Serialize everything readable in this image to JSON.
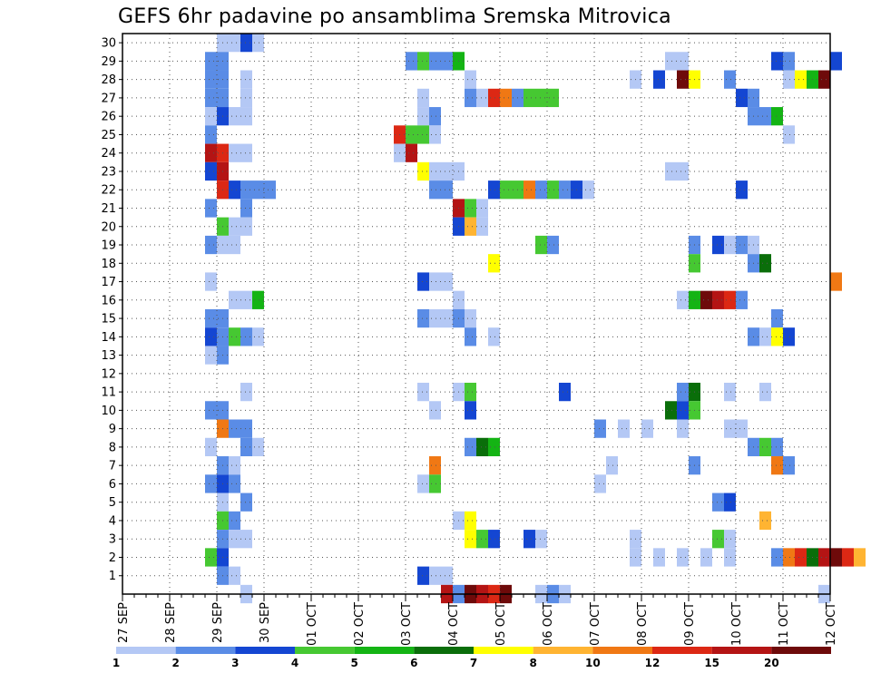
{
  "chart_data": {
    "type": "heatmap",
    "title": "GEFS 6hr padavine po ansamblima Sremska Mitrovica",
    "xlabel": "",
    "ylabel": "",
    "x_start": "27 SEP 00Z",
    "x_tick_labels": [
      "27 SEP",
      "28 SEP",
      "29 SEP",
      "30 SEP",
      "01 OCT",
      "02 OCT",
      "03 OCT",
      "04 OCT",
      "05 OCT",
      "06 OCT",
      "07 OCT",
      "08 OCT",
      "09 OCT",
      "10 OCT",
      "11 OCT",
      "12 OCT"
    ],
    "steps_per_day": 4,
    "y_tick_labels": [
      "1",
      "2",
      "3",
      "4",
      "5",
      "6",
      "7",
      "8",
      "9",
      "10",
      "11",
      "12",
      "13",
      "14",
      "15",
      "16",
      "17",
      "18",
      "19",
      "20",
      "21",
      "22",
      "23",
      "24",
      "25",
      "26",
      "27",
      "28",
      "29",
      "30"
    ],
    "y_range": [
      0,
      30
    ],
    "grid": true,
    "colorbar": {
      "labels": [
        "1",
        "2",
        "3",
        "4",
        "5",
        "6",
        "7",
        "8",
        "10",
        "12",
        "15",
        "20"
      ],
      "colors": [
        "#b4c8f5",
        "#5a8ce6",
        "#1446d2",
        "#46c832",
        "#14b414",
        "#0a6e0a",
        "#ffff00",
        "#ffb432",
        "#f07814",
        "#dc2814",
        "#b41414",
        "#6e0a0a"
      ]
    },
    "cells_note": "each cell: [day_offset_from_27SEP, member_row, color_class 1..12]",
    "cells": [
      [
        2.0,
        30,
        1
      ],
      [
        2.25,
        30,
        1
      ],
      [
        2.5,
        30,
        3
      ],
      [
        2.75,
        30,
        1
      ],
      [
        1.75,
        29,
        2
      ],
      [
        2.0,
        29,
        2
      ],
      [
        6.0,
        29,
        2
      ],
      [
        6.25,
        29,
        4
      ],
      [
        6.5,
        29,
        2
      ],
      [
        6.75,
        29,
        2
      ],
      [
        7.0,
        29,
        5
      ],
      [
        11.5,
        29,
        1
      ],
      [
        11.75,
        29,
        1
      ],
      [
        13.75,
        29,
        3
      ],
      [
        14.0,
        29,
        2
      ],
      [
        15.0,
        29,
        3
      ],
      [
        1.75,
        28,
        2
      ],
      [
        2.0,
        28,
        2
      ],
      [
        2.5,
        28,
        1
      ],
      [
        7.25,
        28,
        1
      ],
      [
        10.75,
        28,
        1
      ],
      [
        11.25,
        28,
        3
      ],
      [
        11.75,
        28,
        12
      ],
      [
        12.0,
        28,
        7
      ],
      [
        12.75,
        28,
        2
      ],
      [
        14.0,
        28,
        1
      ],
      [
        14.25,
        28,
        7
      ],
      [
        14.5,
        28,
        5
      ],
      [
        14.75,
        28,
        12
      ],
      [
        1.75,
        27,
        2
      ],
      [
        2.0,
        27,
        2
      ],
      [
        2.5,
        27,
        1
      ],
      [
        6.25,
        27,
        1
      ],
      [
        7.25,
        27,
        2
      ],
      [
        7.5,
        27,
        1
      ],
      [
        7.75,
        27,
        10
      ],
      [
        8.0,
        27,
        9
      ],
      [
        8.25,
        27,
        2
      ],
      [
        8.5,
        27,
        4
      ],
      [
        8.75,
        27,
        4
      ],
      [
        9.0,
        27,
        4
      ],
      [
        13.0,
        27,
        3
      ],
      [
        13.25,
        27,
        2
      ],
      [
        1.75,
        26,
        1
      ],
      [
        2.0,
        26,
        3
      ],
      [
        2.25,
        26,
        1
      ],
      [
        2.5,
        26,
        1
      ],
      [
        6.25,
        26,
        1
      ],
      [
        6.5,
        26,
        2
      ],
      [
        13.25,
        26,
        2
      ],
      [
        13.5,
        26,
        2
      ],
      [
        13.75,
        26,
        5
      ],
      [
        1.75,
        25,
        2
      ],
      [
        5.75,
        25,
        10
      ],
      [
        6.0,
        25,
        4
      ],
      [
        6.25,
        25,
        4
      ],
      [
        6.5,
        25,
        1
      ],
      [
        14.0,
        25,
        1
      ],
      [
        1.75,
        24,
        11
      ],
      [
        2.0,
        24,
        10
      ],
      [
        2.25,
        24,
        1
      ],
      [
        2.5,
        24,
        1
      ],
      [
        5.75,
        24,
        1
      ],
      [
        6.0,
        24,
        11
      ],
      [
        1.75,
        23,
        3
      ],
      [
        2.0,
        23,
        11
      ],
      [
        6.25,
        23,
        7
      ],
      [
        6.5,
        23,
        1
      ],
      [
        6.75,
        23,
        1
      ],
      [
        7.0,
        23,
        1
      ],
      [
        11.5,
        23,
        1
      ],
      [
        11.75,
        23,
        1
      ],
      [
        2.0,
        22,
        10
      ],
      [
        2.25,
        22,
        3
      ],
      [
        2.5,
        22,
        2
      ],
      [
        2.75,
        22,
        2
      ],
      [
        3.0,
        22,
        2
      ],
      [
        6.5,
        22,
        2
      ],
      [
        6.75,
        22,
        2
      ],
      [
        7.75,
        22,
        3
      ],
      [
        8.0,
        22,
        4
      ],
      [
        8.25,
        22,
        4
      ],
      [
        8.5,
        22,
        9
      ],
      [
        8.75,
        22,
        2
      ],
      [
        9.0,
        22,
        4
      ],
      [
        9.25,
        22,
        2
      ],
      [
        9.5,
        22,
        3
      ],
      [
        9.75,
        22,
        1
      ],
      [
        13.0,
        22,
        3
      ],
      [
        1.75,
        21,
        2
      ],
      [
        2.5,
        21,
        2
      ],
      [
        7.0,
        21,
        11
      ],
      [
        7.25,
        21,
        4
      ],
      [
        7.5,
        21,
        1
      ],
      [
        2.0,
        20,
        4
      ],
      [
        2.25,
        20,
        1
      ],
      [
        2.5,
        20,
        1
      ],
      [
        7.0,
        20,
        3
      ],
      [
        7.25,
        20,
        8
      ],
      [
        7.5,
        20,
        1
      ],
      [
        1.75,
        19,
        2
      ],
      [
        2.0,
        19,
        1
      ],
      [
        2.25,
        19,
        1
      ],
      [
        8.75,
        19,
        4
      ],
      [
        9.0,
        19,
        2
      ],
      [
        12.0,
        19,
        2
      ],
      [
        12.5,
        19,
        3
      ],
      [
        12.75,
        19,
        1
      ],
      [
        13.0,
        19,
        2
      ],
      [
        13.25,
        19,
        1
      ],
      [
        7.75,
        18,
        7
      ],
      [
        12.0,
        18,
        4
      ],
      [
        13.25,
        18,
        2
      ],
      [
        13.5,
        18,
        6
      ],
      [
        1.75,
        17,
        1
      ],
      [
        6.25,
        17,
        3
      ],
      [
        6.5,
        17,
        1
      ],
      [
        6.75,
        17,
        1
      ],
      [
        15.0,
        17,
        9
      ],
      [
        2.25,
        16,
        1
      ],
      [
        2.5,
        16,
        1
      ],
      [
        2.75,
        16,
        5
      ],
      [
        7.0,
        16,
        1
      ],
      [
        11.75,
        16,
        1
      ],
      [
        12.0,
        16,
        5
      ],
      [
        12.25,
        16,
        12
      ],
      [
        12.5,
        16,
        11
      ],
      [
        12.75,
        16,
        10
      ],
      [
        13.0,
        16,
        2
      ],
      [
        1.75,
        15,
        2
      ],
      [
        2.0,
        15,
        2
      ],
      [
        6.25,
        15,
        2
      ],
      [
        6.5,
        15,
        1
      ],
      [
        6.75,
        15,
        1
      ],
      [
        7.0,
        15,
        2
      ],
      [
        7.25,
        15,
        1
      ],
      [
        13.75,
        15,
        2
      ],
      [
        1.75,
        14,
        3
      ],
      [
        2.0,
        14,
        2
      ],
      [
        2.25,
        14,
        4
      ],
      [
        2.5,
        14,
        2
      ],
      [
        2.75,
        14,
        1
      ],
      [
        7.25,
        14,
        2
      ],
      [
        7.75,
        14,
        1
      ],
      [
        13.25,
        14,
        2
      ],
      [
        13.5,
        14,
        1
      ],
      [
        13.75,
        14,
        7
      ],
      [
        14.0,
        14,
        3
      ],
      [
        1.75,
        13,
        1
      ],
      [
        2.0,
        13,
        2
      ],
      [
        2.5,
        11,
        1
      ],
      [
        6.25,
        11,
        1
      ],
      [
        7.0,
        11,
        1
      ],
      [
        7.25,
        11,
        4
      ],
      [
        9.25,
        11,
        3
      ],
      [
        11.75,
        11,
        2
      ],
      [
        12.0,
        11,
        6
      ],
      [
        12.75,
        11,
        1
      ],
      [
        13.5,
        11,
        1
      ],
      [
        1.75,
        10,
        2
      ],
      [
        2.0,
        10,
        2
      ],
      [
        6.5,
        10,
        1
      ],
      [
        7.25,
        10,
        3
      ],
      [
        11.5,
        10,
        6
      ],
      [
        11.75,
        10,
        3
      ],
      [
        12.0,
        10,
        4
      ],
      [
        2.0,
        9,
        9
      ],
      [
        2.25,
        9,
        2
      ],
      [
        2.5,
        9,
        2
      ],
      [
        10.0,
        9,
        2
      ],
      [
        10.5,
        9,
        1
      ],
      [
        11.0,
        9,
        1
      ],
      [
        11.75,
        9,
        1
      ],
      [
        12.75,
        9,
        1
      ],
      [
        13.0,
        9,
        1
      ],
      [
        1.75,
        8,
        1
      ],
      [
        2.5,
        8,
        2
      ],
      [
        2.75,
        8,
        1
      ],
      [
        7.25,
        8,
        2
      ],
      [
        7.5,
        8,
        6
      ],
      [
        7.75,
        8,
        5
      ],
      [
        13.25,
        8,
        2
      ],
      [
        13.5,
        8,
        4
      ],
      [
        13.75,
        8,
        2
      ],
      [
        2.0,
        7,
        2
      ],
      [
        2.25,
        7,
        1
      ],
      [
        6.5,
        7,
        9
      ],
      [
        10.25,
        7,
        1
      ],
      [
        12.0,
        7,
        2
      ],
      [
        13.75,
        7,
        9
      ],
      [
        14.0,
        7,
        2
      ],
      [
        1.75,
        6,
        2
      ],
      [
        2.0,
        6,
        3
      ],
      [
        2.25,
        6,
        2
      ],
      [
        6.25,
        6,
        1
      ],
      [
        6.5,
        6,
        4
      ],
      [
        10.0,
        6,
        1
      ],
      [
        2.0,
        5,
        1
      ],
      [
        2.5,
        5,
        2
      ],
      [
        12.5,
        5,
        2
      ],
      [
        12.75,
        5,
        3
      ],
      [
        2.0,
        4,
        4
      ],
      [
        2.25,
        4,
        2
      ],
      [
        7.0,
        4,
        1
      ],
      [
        7.25,
        4,
        7
      ],
      [
        13.5,
        4,
        8
      ],
      [
        2.0,
        3,
        2
      ],
      [
        2.25,
        3,
        1
      ],
      [
        2.5,
        3,
        1
      ],
      [
        7.25,
        3,
        7
      ],
      [
        7.5,
        3,
        4
      ],
      [
        7.75,
        3,
        3
      ],
      [
        8.5,
        3,
        3
      ],
      [
        8.75,
        3,
        1
      ],
      [
        10.75,
        3,
        1
      ],
      [
        12.5,
        3,
        4
      ],
      [
        12.75,
        3,
        1
      ],
      [
        1.75,
        2,
        4
      ],
      [
        2.0,
        2,
        3
      ],
      [
        10.75,
        2,
        1
      ],
      [
        11.25,
        2,
        1
      ],
      [
        11.75,
        2,
        1
      ],
      [
        12.25,
        2,
        1
      ],
      [
        12.75,
        2,
        1
      ],
      [
        13.75,
        2,
        2
      ],
      [
        14.0,
        2,
        9
      ],
      [
        14.25,
        2,
        10
      ],
      [
        14.5,
        2,
        6
      ],
      [
        14.75,
        2,
        11
      ],
      [
        15.0,
        2,
        12
      ],
      [
        15.25,
        2,
        10
      ],
      [
        15.5,
        2,
        8
      ],
      [
        2.0,
        1,
        2
      ],
      [
        2.25,
        1,
        1
      ],
      [
        6.25,
        1,
        3
      ],
      [
        6.5,
        1,
        1
      ],
      [
        6.75,
        1,
        1
      ],
      [
        2.5,
        0,
        1
      ],
      [
        6.75,
        0,
        11
      ],
      [
        7.0,
        0,
        2
      ],
      [
        7.25,
        0,
        12
      ],
      [
        7.5,
        0,
        11
      ],
      [
        7.75,
        0,
        10
      ],
      [
        8.0,
        0,
        12
      ],
      [
        8.75,
        0,
        1
      ],
      [
        9.0,
        0,
        2
      ],
      [
        9.25,
        0,
        1
      ],
      [
        14.75,
        0,
        1
      ]
    ]
  }
}
